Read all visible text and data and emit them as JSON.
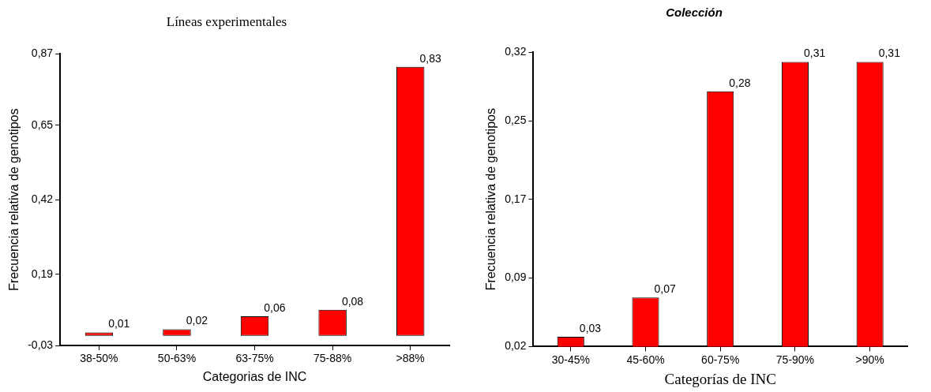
{
  "chart_data": [
    {
      "type": "bar",
      "title": "Líneas experimentales",
      "xlabel": "Categorias de INC",
      "ylabel": "Frecuencia relativa de genotipos",
      "categories": [
        "38-50%",
        "50-63%",
        "63-75%",
        "75-88%",
        ">88%"
      ],
      "values": [
        0.01,
        0.02,
        0.06,
        0.08,
        0.83
      ],
      "value_labels": [
        "0,01",
        "0,02",
        "0,06",
        "0,08",
        "0,83"
      ],
      "color": "#ff0000",
      "ylim": [
        -0.03,
        0.87
      ],
      "yticks": [
        {
          "value": -0.03,
          "label": "-0,03"
        },
        {
          "value": 0.19,
          "label": "0,19"
        },
        {
          "value": 0.42,
          "label": "0,42"
        },
        {
          "value": 0.65,
          "label": "0,65"
        },
        {
          "value": 0.87,
          "label": "0,87"
        }
      ]
    },
    {
      "type": "bar",
      "title": "Colección",
      "xlabel": "Categorías de INC",
      "ylabel": "Frecuencia relativa de genotipos",
      "categories": [
        "30-45%",
        "45-60%",
        "60-75%",
        "75-90%",
        ">90%"
      ],
      "values": [
        0.03,
        0.07,
        0.28,
        0.31,
        0.31
      ],
      "value_labels": [
        "0,03",
        "0,07",
        "0,28",
        "0,31",
        "0,31"
      ],
      "color": "#ff0000",
      "ylim": [
        0.02,
        0.32
      ],
      "yticks": [
        {
          "value": 0.02,
          "label": "0,02"
        },
        {
          "value": 0.09,
          "label": "0,09"
        },
        {
          "value": 0.17,
          "label": "0,17"
        },
        {
          "value": 0.25,
          "label": "0,25"
        },
        {
          "value": 0.32,
          "label": "0,32"
        }
      ]
    }
  ]
}
